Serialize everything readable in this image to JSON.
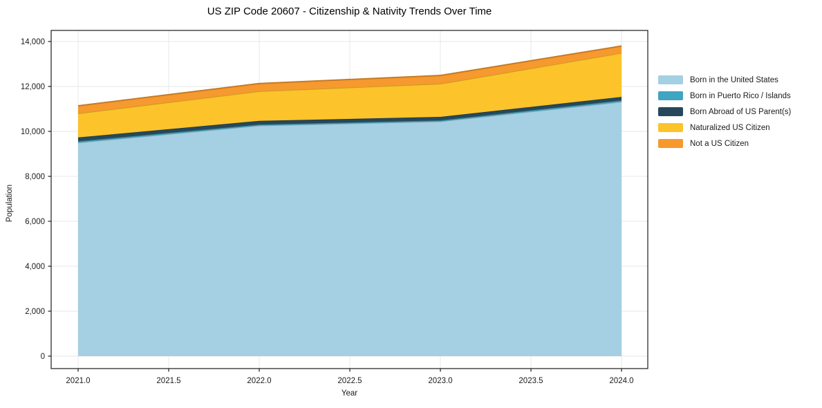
{
  "chart": {
    "title": "US ZIP Code 20607 - Citizenship & Nativity Trends Over Time",
    "xlabel": "Year",
    "ylabel": "Population"
  },
  "chart_data": {
    "type": "area",
    "stacked": true,
    "title": "US ZIP Code 20607 - Citizenship & Nativity Trends Over Time",
    "xlabel": "Year",
    "ylabel": "Population",
    "grid": true,
    "legend_position": "right-outside",
    "x": [
      2021,
      2022,
      2023,
      2024
    ],
    "x_ticks": [
      2021.0,
      2021.5,
      2022.0,
      2022.5,
      2023.0,
      2023.5,
      2024.0
    ],
    "x_tick_labels": [
      "2021.0",
      "2021.5",
      "2022.0",
      "2022.5",
      "2023.0",
      "2023.5",
      "2024.0"
    ],
    "y_ticks": [
      0,
      2000,
      4000,
      6000,
      8000,
      10000,
      12000,
      14000
    ],
    "y_tick_labels": [
      "0",
      "2,000",
      "4,000",
      "6,000",
      "8,000",
      "10,000",
      "12,000",
      "14,000"
    ],
    "xlim": [
      2020.85,
      2024.145
    ],
    "ylim": [
      -554,
      14492
    ],
    "series": [
      {
        "name": "Born in the United States",
        "color": "#a5cfe3",
        "values": [
          9500,
          10260,
          10445,
          11320
        ]
      },
      {
        "name": "Born in Puerto Rico / Islands",
        "color": "#3fa5c0",
        "values": [
          60,
          45,
          45,
          60
        ]
      },
      {
        "name": "Born Abroad of US Parent(s)",
        "color": "#27485a",
        "values": [
          170,
          165,
          155,
          155
        ]
      },
      {
        "name": "Naturalized US Citizen",
        "color": "#fcc32b",
        "values": [
          1070,
          1320,
          1475,
          1955
        ]
      },
      {
        "name": "Not a US Citizen",
        "color": "#f6992e",
        "values": [
          340,
          340,
          370,
          310
        ]
      }
    ],
    "cumulative_tops": {
      "2021": [
        9500,
        9560,
        9730,
        10800,
        11140
      ],
      "2022": [
        10260,
        10305,
        10470,
        11790,
        12130
      ],
      "2023": [
        10445,
        10490,
        10645,
        12120,
        12490
      ],
      "2024": [
        11320,
        11380,
        11535,
        13490,
        13800
      ]
    },
    "colors": {
      "grid": "#e7e7e7",
      "spine": "#1a1a1a",
      "tick_text": "#1a1a1a"
    }
  }
}
